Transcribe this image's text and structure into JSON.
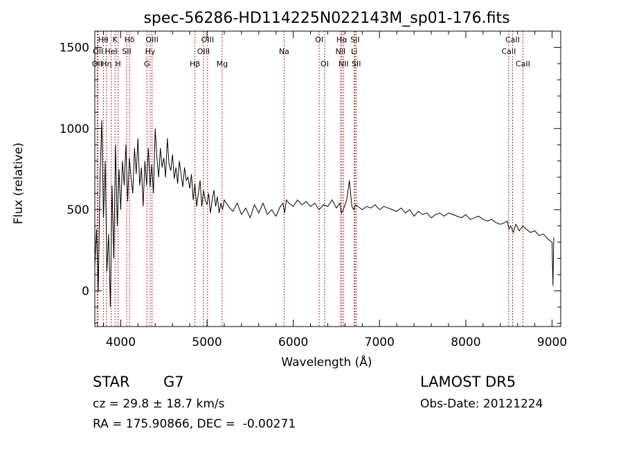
{
  "chart_data": {
    "type": "line",
    "title": "spec-56286-HD114225N022143M_sp01-176.fits",
    "xlabel": "Wavelength (Å)",
    "ylabel": "Flux (relative)",
    "xlim": [
      3700,
      9100
    ],
    "ylim": [
      -220,
      1600
    ],
    "xticks": [
      4000,
      5000,
      6000,
      7000,
      8000,
      9000
    ],
    "yticks": [
      0,
      500,
      1000,
      1500
    ],
    "grid": false,
    "line_color": "#000000",
    "marker_color": "#b22222",
    "series": [
      {
        "x": [
          3700,
          3720,
          3740,
          3760,
          3780,
          3800,
          3820,
          3840,
          3860,
          3880,
          3900,
          3920,
          3940,
          3960,
          3980,
          4000,
          4020,
          4040,
          4060,
          4080,
          4100,
          4120,
          4140,
          4160,
          4180,
          4200,
          4220,
          4240,
          4260,
          4280,
          4300,
          4320,
          4340,
          4360,
          4380,
          4400,
          4420,
          4440,
          4460,
          4480,
          4500,
          4520,
          4540,
          4560,
          4580,
          4600,
          4620,
          4640,
          4660,
          4680,
          4700,
          4720,
          4740,
          4760,
          4780,
          4800,
          4820,
          4840,
          4860,
          4880,
          4900,
          4920,
          4940,
          4960,
          4980,
          5000,
          5020,
          5040,
          5060,
          5080,
          5100,
          5120,
          5140,
          5160,
          5180,
          5200,
          5250,
          5300,
          5350,
          5400,
          5450,
          5500,
          5550,
          5600,
          5650,
          5700,
          5750,
          5800,
          5850,
          5880,
          5900,
          5920,
          5950,
          6000,
          6050,
          6100,
          6150,
          6200,
          6250,
          6300,
          6350,
          6400,
          6450,
          6500,
          6540,
          6560,
          6580,
          6620,
          6650,
          6680,
          6700,
          6720,
          6750,
          6800,
          6850,
          6900,
          6950,
          7000,
          7050,
          7100,
          7150,
          7200,
          7250,
          7300,
          7350,
          7400,
          7450,
          7500,
          7550,
          7600,
          7650,
          7700,
          7750,
          7800,
          7850,
          7900,
          7950,
          8000,
          8050,
          8100,
          8150,
          8200,
          8250,
          8300,
          8350,
          8400,
          8450,
          8480,
          8500,
          8520,
          8550,
          8580,
          8620,
          8660,
          8700,
          8750,
          8800,
          8850,
          8900,
          8950,
          9000,
          9010,
          9020
        ],
        "y": [
          150,
          380,
          0,
          700,
          1050,
          450,
          800,
          120,
          350,
          -100,
          650,
          200,
          900,
          400,
          750,
          500,
          800,
          650,
          900,
          550,
          820,
          700,
          600,
          880,
          720,
          940,
          650,
          760,
          520,
          800,
          650,
          880,
          640,
          780,
          600,
          1000,
          820,
          700,
          880,
          760,
          820,
          700,
          940,
          780,
          740,
          840,
          690,
          760,
          660,
          800,
          720,
          640,
          760,
          680,
          700,
          630,
          720,
          560,
          660,
          520,
          600,
          680,
          520,
          620,
          560,
          530,
          600,
          480,
          560,
          620,
          520,
          580,
          480,
          540,
          500,
          560,
          520,
          490,
          540,
          470,
          510,
          450,
          530,
          480,
          540,
          470,
          500,
          460,
          520,
          540,
          480,
          560,
          540,
          520,
          560,
          530,
          550,
          520,
          540,
          500,
          530,
          520,
          560,
          510,
          540,
          480,
          500,
          560,
          680,
          520,
          500,
          530,
          520,
          500,
          520,
          510,
          530,
          500,
          520,
          510,
          500,
          490,
          510,
          480,
          500,
          460,
          490,
          470,
          480,
          450,
          470,
          480,
          460,
          480,
          470,
          460,
          450,
          470,
          440,
          450,
          460,
          440,
          430,
          440,
          420,
          410,
          420,
          430,
          380,
          400,
          360,
          410,
          370,
          400,
          380,
          360,
          370,
          340,
          350,
          320,
          300,
          30,
          330
        ]
      }
    ],
    "lines": [
      {
        "label": "OII",
        "x": 3727,
        "row": 2
      },
      {
        "label": "OII",
        "x": 3737,
        "row": 1
      },
      {
        "label": "Hθ",
        "x": 3798,
        "row": 0
      },
      {
        "label": "Hη",
        "x": 3835,
        "row": 2
      },
      {
        "label": "HeI",
        "x": 3889,
        "row": 1
      },
      {
        "label": "K",
        "x": 3934,
        "row": 0
      },
      {
        "label": "H",
        "x": 3969,
        "row": 2
      },
      {
        "label": "SII",
        "x": 4069,
        "row": 1
      },
      {
        "label": "Hδ",
        "x": 4102,
        "row": 0
      },
      {
        "label": "G",
        "x": 4304,
        "row": 2
      },
      {
        "label": "Hγ",
        "x": 4341,
        "row": 1
      },
      {
        "label": "OIII",
        "x": 4363,
        "row": 0
      },
      {
        "label": "Hβ",
        "x": 4861,
        "row": 2
      },
      {
        "label": "OIII",
        "x": 4959,
        "row": 1
      },
      {
        "label": "OIII",
        "x": 5007,
        "row": 0
      },
      {
        "label": "Mg",
        "x": 5175,
        "row": 2
      },
      {
        "label": "Na",
        "x": 5894,
        "row": 1
      },
      {
        "label": "OI",
        "x": 6300,
        "row": 0
      },
      {
        "label": "OI",
        "x": 6364,
        "row": 2
      },
      {
        "label": "NII",
        "x": 6548,
        "row": 1
      },
      {
        "label": "Hα",
        "x": 6563,
        "row": 0
      },
      {
        "label": "NII",
        "x": 6583,
        "row": 2
      },
      {
        "label": "Li",
        "x": 6707,
        "row": 1
      },
      {
        "label": "SII",
        "x": 6716,
        "row": 0
      },
      {
        "label": "SII",
        "x": 6731,
        "row": 2
      },
      {
        "label": "CaII",
        "x": 8498,
        "row": 1
      },
      {
        "label": "CaII",
        "x": 8542,
        "row": 0
      },
      {
        "label": "CaII",
        "x": 8662,
        "row": 2
      }
    ]
  },
  "info": {
    "object_class": "STAR",
    "subclass": "G7",
    "survey": "LAMOST DR5",
    "redshift_text": "cz = 29.8 ± 18.7 km/s",
    "obs_date": "Obs-Date: 20121224",
    "coords": "RA = 175.90866, DEC =  -0.00271"
  }
}
